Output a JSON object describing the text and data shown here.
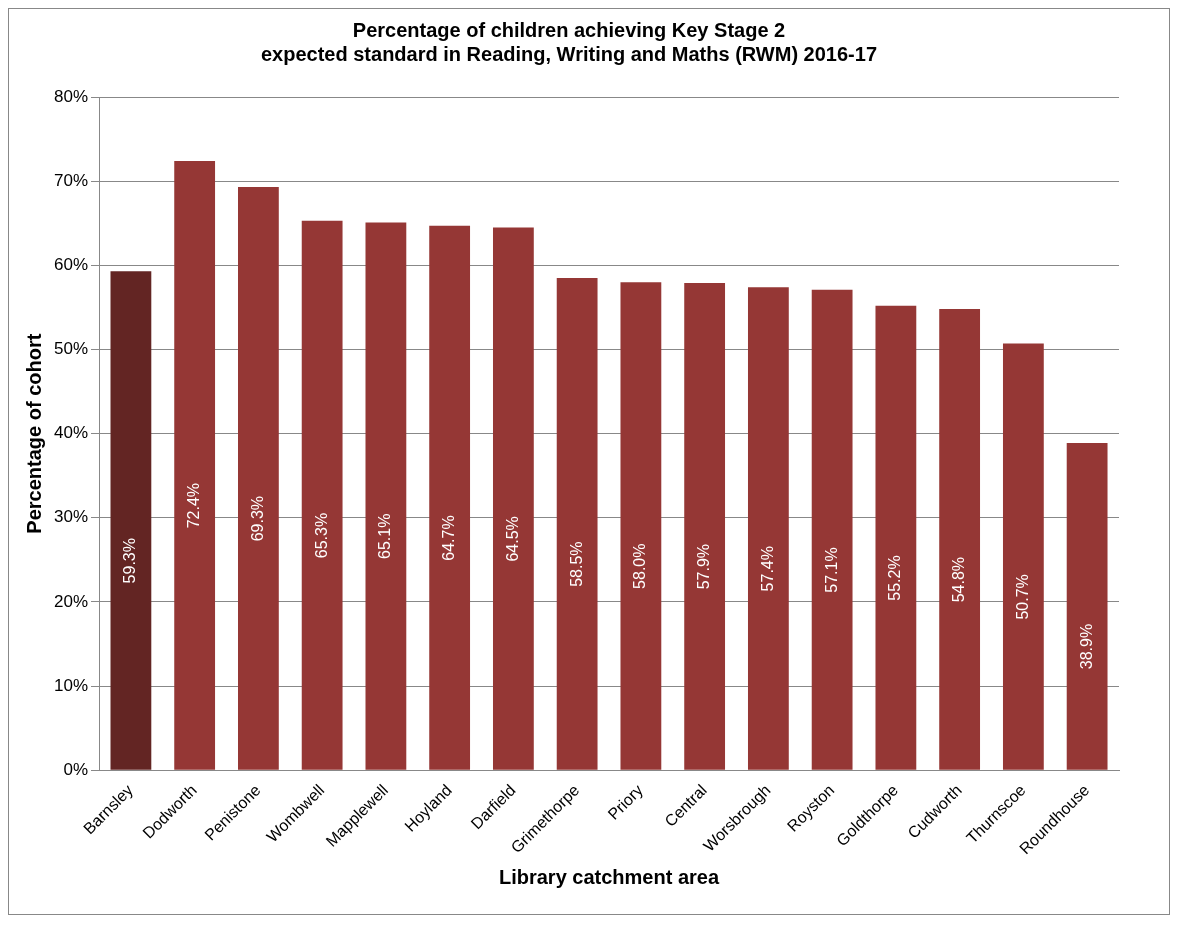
{
  "chart_data": {
    "type": "bar",
    "title": "Percentage of children achieving Key Stage 2\nexpected standard in Reading, Writing and Maths (RWM) 2016-17",
    "xlabel": "Library catchment area",
    "ylabel": "Percentage of cohort",
    "categories": [
      "Barnsley",
      "Dodworth",
      "Penistone",
      "Wombwell",
      "Mapplewell",
      "Hoyland",
      "Darfield",
      "Grimethorpe",
      "Priory",
      "Central",
      "Worsbrough",
      "Royston",
      "Goldthorpe",
      "Cudworth",
      "Thurnscoe",
      "Roundhouse"
    ],
    "values": [
      59.3,
      72.4,
      69.3,
      65.3,
      65.1,
      64.7,
      64.5,
      58.5,
      58.0,
      57.9,
      57.4,
      57.1,
      55.2,
      54.8,
      50.7,
      38.9
    ],
    "value_labels": [
      "59.3%",
      "72.4%",
      "69.3%",
      "65.3%",
      "65.1%",
      "64.7%",
      "64.5%",
      "58.5%",
      "58.0%",
      "57.9%",
      "57.4%",
      "57.1%",
      "55.2%",
      "54.8%",
      "50.7%",
      "38.9%"
    ],
    "colors": [
      "#632523",
      "#953735",
      "#953735",
      "#953735",
      "#953735",
      "#953735",
      "#953735",
      "#953735",
      "#953735",
      "#953735",
      "#953735",
      "#953735",
      "#953735",
      "#953735",
      "#953735",
      "#953735"
    ],
    "ylim": [
      0,
      80
    ],
    "yticks": [
      {
        "value": 0,
        "label": "0%"
      },
      {
        "value": 10,
        "label": "10%"
      },
      {
        "value": 20,
        "label": "20%"
      },
      {
        "value": 30,
        "label": "30%"
      },
      {
        "value": 40,
        "label": "40%"
      },
      {
        "value": 50,
        "label": "50%"
      },
      {
        "value": 60,
        "label": "60%"
      },
      {
        "value": 70,
        "label": "70%"
      },
      {
        "value": 80,
        "label": "80%"
      }
    ],
    "grid": "y",
    "legend": false
  }
}
